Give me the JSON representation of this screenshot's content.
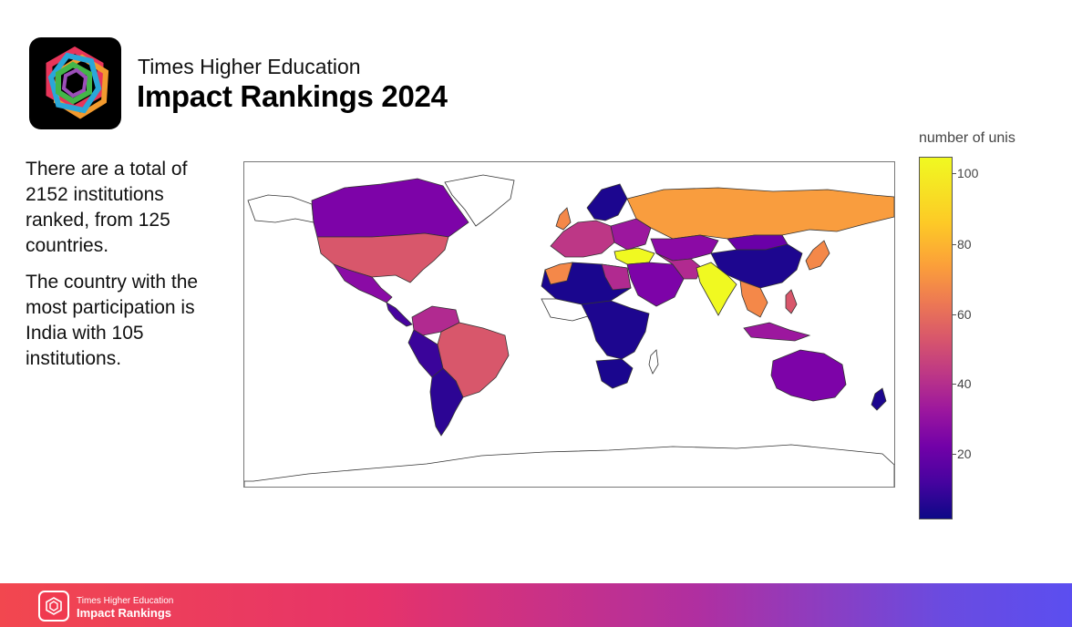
{
  "header": {
    "logo_icon": "hexagon-knot-logo-icon",
    "subtitle": "Times Higher Education",
    "title": "Impact Rankings 2024"
  },
  "summary": {
    "paragraph_1": "There are a total of 2152 institutions ranked, from 125 countries.",
    "paragraph_2": "The country with the most participation is India with 105 institutions."
  },
  "map": {
    "colorbar_title": "number of unis",
    "colorscale": [
      "#0d0887",
      "#46039f",
      "#7201a8",
      "#9c179e",
      "#bd3786",
      "#d8576b",
      "#ed7953",
      "#fb9f3a",
      "#fdca26",
      "#f0f921"
    ],
    "colorbar_ticks": [
      "100",
      "80",
      "60",
      "40",
      "20"
    ],
    "colorbar_range": [
      1,
      105
    ],
    "no_data_color": "#ffffff"
  },
  "footer": {
    "logo_icon": "hexagon-knot-logo-icon",
    "subtitle": "Times Higher Education",
    "title": "Impact Rankings",
    "gradient": [
      "#f2474f",
      "#5b4ef0"
    ]
  }
}
